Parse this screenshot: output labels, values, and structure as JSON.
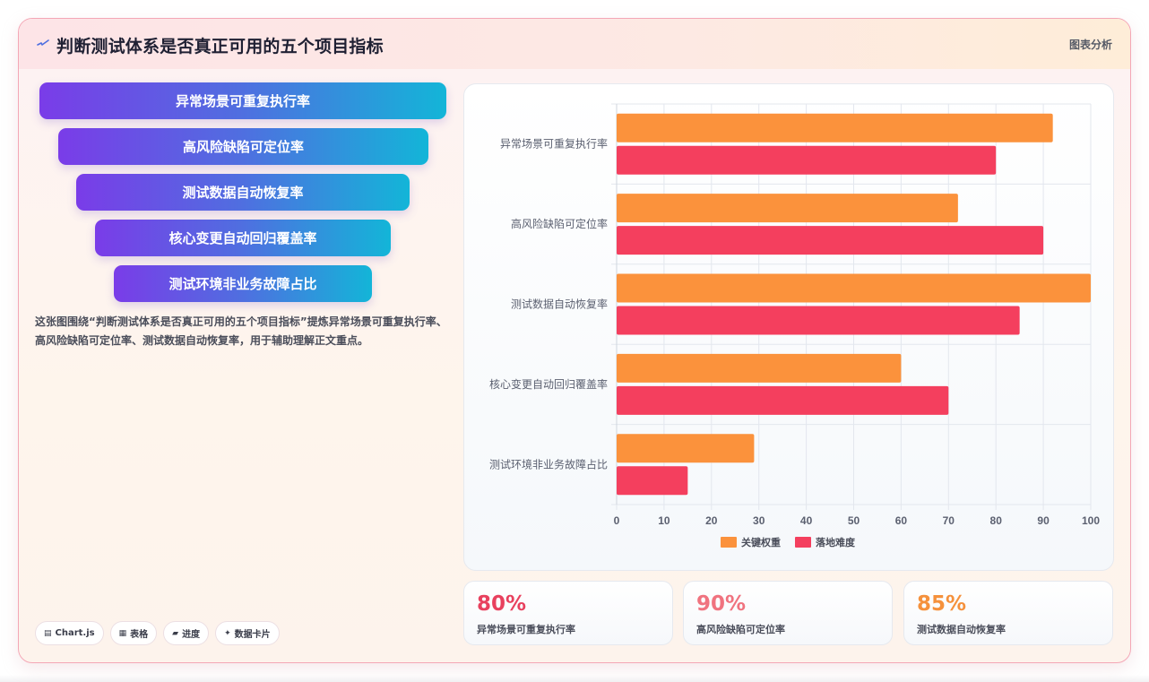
{
  "header": {
    "title": "判断测试体系是否真正可用的五个项目指标",
    "tag": "图表分析",
    "icon": "spark-icon"
  },
  "funnel": [
    "异常场景可重复执行率",
    "高风险缺陷可定位率",
    "测试数据自动恢复率",
    "核心变更自动回归覆盖率",
    "测试环境非业务故障占比"
  ],
  "description": "这张图围绕“判断测试体系是否真正可用的五个项目指标”提炼异常场景可重复执行率、高风险缺陷可定位率、测试数据自动恢复率，用于辅助理解正文重点。",
  "chips": [
    {
      "icon": "chart-icon",
      "glyph": "▤",
      "label": "Chart.js"
    },
    {
      "icon": "table-icon",
      "glyph": "▦",
      "label": "表格"
    },
    {
      "icon": "progress-icon",
      "glyph": "▰",
      "label": "进度"
    },
    {
      "icon": "data-card-icon",
      "glyph": "✦",
      "label": "数据卡片"
    }
  ],
  "chart_data": {
    "type": "bar",
    "orientation": "horizontal",
    "categories": [
      "异常场景可重复执行率",
      "高风险缺陷可定位率",
      "测试数据自动恢复率",
      "核心变更自动回归覆盖率",
      "测试环境非业务故障占比"
    ],
    "series": [
      {
        "name": "关键权重",
        "color": "#fb923c",
        "values": [
          92,
          72,
          100,
          60,
          29
        ]
      },
      {
        "name": "落地难度",
        "color": "#f43f5e",
        "values": [
          80,
          90,
          85,
          70,
          15
        ]
      }
    ],
    "xlim": [
      0,
      100
    ],
    "ticks": [
      "0",
      "10",
      "20",
      "30",
      "40",
      "50",
      "60",
      "70",
      "80",
      "90",
      "100"
    ],
    "grid": true,
    "legend": "bottom"
  },
  "stats": [
    {
      "value": "80%",
      "label": "异常场景可重复执行率",
      "color": "#e8415e"
    },
    {
      "value": "90%",
      "label": "高风险缺陷可定位率",
      "color": "#f0737f"
    },
    {
      "value": "85%",
      "label": "测试数据自动恢复率",
      "color": "#f5913c"
    }
  ]
}
